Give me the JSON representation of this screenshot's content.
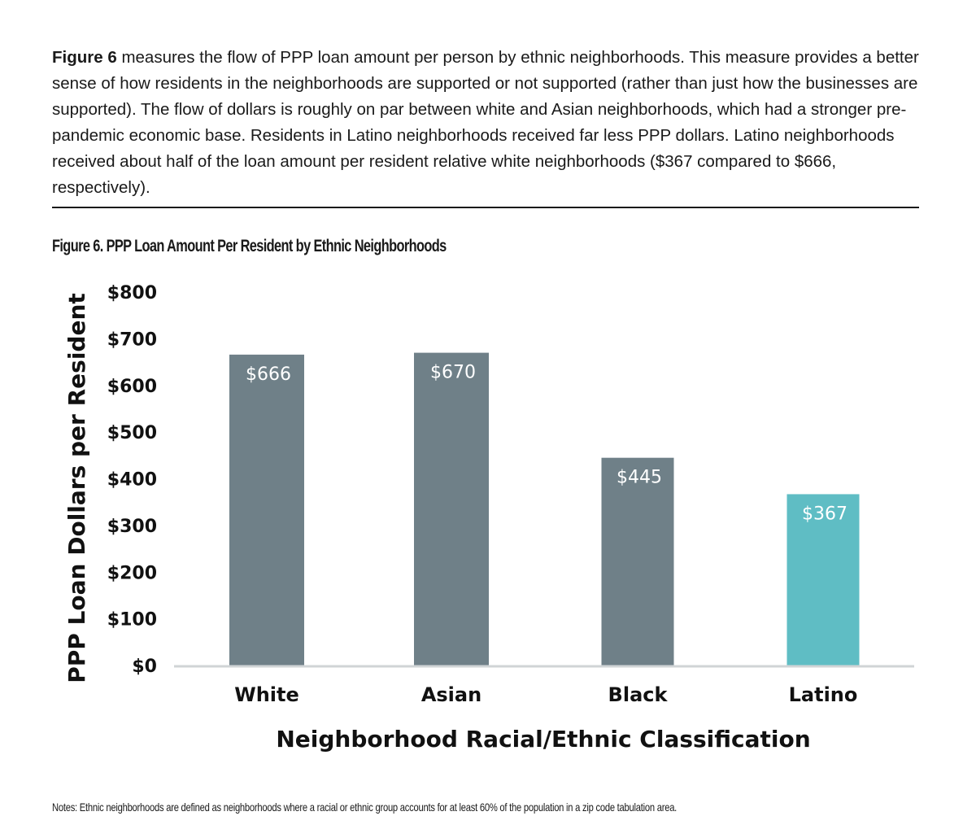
{
  "intro": {
    "lead": "Figure 6",
    "body": " measures the flow of PPP loan amount per person by ethnic neighborhoods. This measure provides a better sense of how residents in the neighborhoods are supported or not supported (rather than just how the businesses are supported). The flow of dollars is roughly on par between white and Asian neighborhoods, which had a stronger pre-pandemic economic base. Residents in Latino neighborhoods received far less PPP dollars. Latino neighborhoods received about half of the loan amount per resident relative white neighborhoods ($367 compared to $666, respectively)."
  },
  "notes": "Notes: Ethnic neighborhoods are defined as neighborhoods where a racial or ethnic group accounts for at least 60% of the population in a zip code tabulation area.",
  "chart_data": {
    "type": "bar",
    "title": "Figure 6. PPP Loan Amount Per Resident by Ethnic Neighborhoods",
    "categories": [
      "White",
      "Asian",
      "Black",
      "Latino"
    ],
    "values": [
      666,
      670,
      445,
      367
    ],
    "data_labels": [
      "$666",
      "$670",
      "$445",
      "$367"
    ],
    "bar_colors": [
      "#6f8088",
      "#6f8088",
      "#6f8088",
      "#5fbdc4"
    ],
    "xlabel": "Neighborhood  Racial/Ethnic Classification",
    "ylabel": "PPP Loan Dollars per Resident",
    "ylim": [
      0,
      800
    ],
    "yticks": [
      0,
      100,
      200,
      300,
      400,
      500,
      600,
      700,
      800
    ],
    "ytick_labels": [
      "$0",
      "$100",
      "$200",
      "$300",
      "$400",
      "$500",
      "$600",
      "$700",
      "$800"
    ],
    "grid": false,
    "legend": "none",
    "axis_color": "#d0d4d6"
  }
}
